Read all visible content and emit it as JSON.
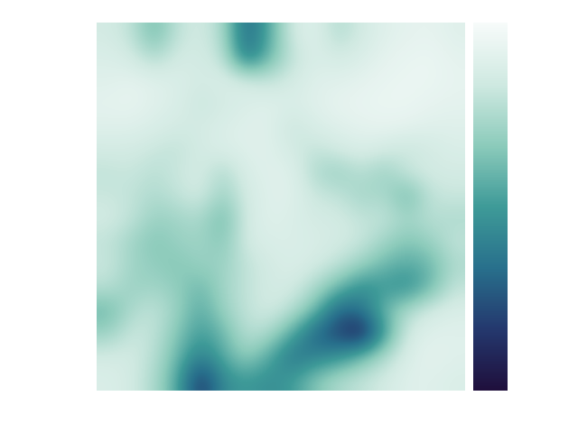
{
  "chart_data": {
    "type": "heatmap",
    "tick_labels": false,
    "cells": [
      [
        0.85,
        0.8,
        0.6,
        0.8,
        0.85,
        0.75,
        0.3,
        0.55,
        0.85,
        0.9,
        0.75,
        0.85,
        0.9,
        0.92,
        0.93,
        0.9
      ],
      [
        0.88,
        0.85,
        0.75,
        0.85,
        0.85,
        0.8,
        0.35,
        0.6,
        0.8,
        0.88,
        0.85,
        0.88,
        0.92,
        0.94,
        0.95,
        0.92
      ],
      [
        0.9,
        0.92,
        0.9,
        0.88,
        0.85,
        0.88,
        0.85,
        0.8,
        0.85,
        0.9,
        0.9,
        0.92,
        0.94,
        0.95,
        0.95,
        0.93
      ],
      [
        0.92,
        0.93,
        0.9,
        0.88,
        0.82,
        0.85,
        0.88,
        0.9,
        0.88,
        0.9,
        0.93,
        0.94,
        0.95,
        0.95,
        0.93,
        0.92
      ],
      [
        0.9,
        0.9,
        0.88,
        0.85,
        0.85,
        0.88,
        0.9,
        0.9,
        0.82,
        0.88,
        0.9,
        0.92,
        0.93,
        0.92,
        0.9,
        0.9
      ],
      [
        0.85,
        0.85,
        0.82,
        0.8,
        0.85,
        0.88,
        0.9,
        0.9,
        0.85,
        0.8,
        0.85,
        0.88,
        0.85,
        0.82,
        0.85,
        0.88
      ],
      [
        0.8,
        0.82,
        0.78,
        0.82,
        0.86,
        0.75,
        0.88,
        0.9,
        0.9,
        0.75,
        0.7,
        0.78,
        0.7,
        0.82,
        0.85,
        0.85
      ],
      [
        0.82,
        0.8,
        0.75,
        0.8,
        0.85,
        0.7,
        0.85,
        0.9,
        0.9,
        0.82,
        0.8,
        0.72,
        0.75,
        0.6,
        0.8,
        0.82
      ],
      [
        0.85,
        0.8,
        0.7,
        0.72,
        0.75,
        0.6,
        0.85,
        0.9,
        0.88,
        0.85,
        0.85,
        0.8,
        0.8,
        0.72,
        0.78,
        0.75
      ],
      [
        0.8,
        0.72,
        0.65,
        0.7,
        0.72,
        0.65,
        0.85,
        0.88,
        0.88,
        0.87,
        0.85,
        0.82,
        0.72,
        0.65,
        0.7,
        0.8
      ],
      [
        0.82,
        0.72,
        0.68,
        0.65,
        0.7,
        0.7,
        0.8,
        0.85,
        0.88,
        0.85,
        0.8,
        0.7,
        0.6,
        0.55,
        0.6,
        0.75
      ],
      [
        0.78,
        0.7,
        0.72,
        0.68,
        0.6,
        0.72,
        0.8,
        0.85,
        0.85,
        0.75,
        0.6,
        0.45,
        0.5,
        0.45,
        0.6,
        0.8
      ],
      [
        0.6,
        0.75,
        0.8,
        0.7,
        0.55,
        0.7,
        0.8,
        0.85,
        0.78,
        0.6,
        0.3,
        0.35,
        0.6,
        0.75,
        0.85,
        0.88
      ],
      [
        0.7,
        0.82,
        0.8,
        0.65,
        0.5,
        0.6,
        0.78,
        0.75,
        0.55,
        0.3,
        0.2,
        0.05,
        0.5,
        0.85,
        0.9,
        0.9
      ],
      [
        0.85,
        0.85,
        0.78,
        0.6,
        0.4,
        0.55,
        0.7,
        0.55,
        0.35,
        0.4,
        0.45,
        0.6,
        0.75,
        0.88,
        0.92,
        0.9
      ],
      [
        0.88,
        0.85,
        0.75,
        0.55,
        0.15,
        0.45,
        0.5,
        0.45,
        0.5,
        0.65,
        0.75,
        0.8,
        0.85,
        0.9,
        0.9,
        0.88
      ]
    ],
    "clim": [
      0,
      1
    ],
    "cticks": []
  }
}
